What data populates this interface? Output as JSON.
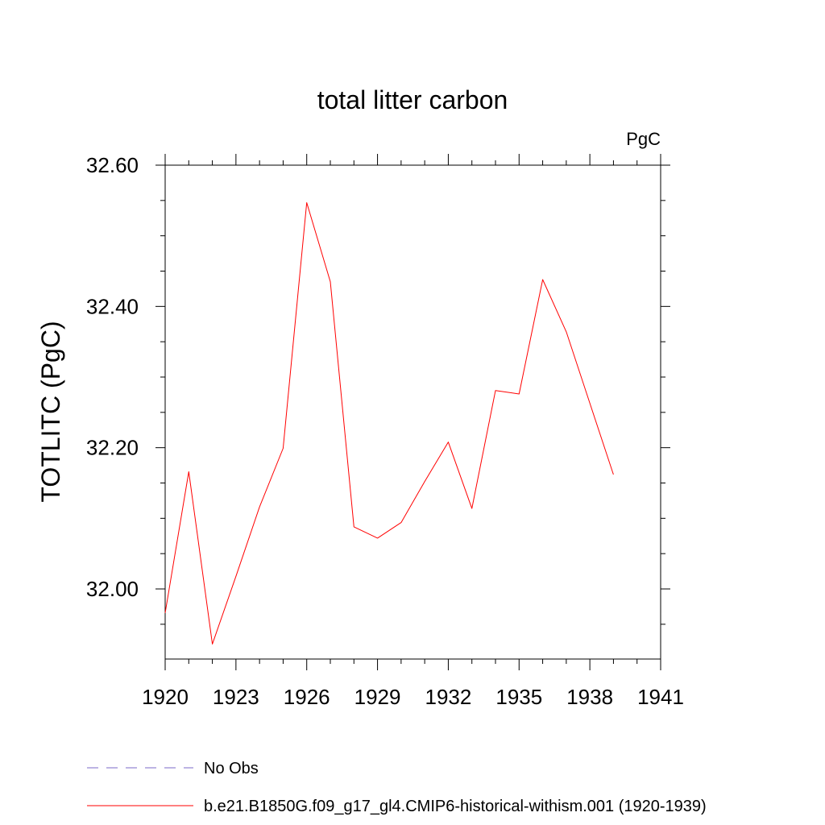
{
  "chart_data": {
    "type": "line",
    "title": "total litter carbon",
    "units_label": "PgC",
    "ylabel": "TOTLITC  (PgC)",
    "xlabel": "",
    "xlim": [
      1920,
      1941
    ],
    "ylim": [
      31.9,
      32.62
    ],
    "x_ticks": [
      1920,
      1923,
      1926,
      1929,
      1932,
      1935,
      1938,
      1941
    ],
    "y_ticks": [
      32.0,
      32.2,
      32.4,
      32.6
    ],
    "y_tick_labels": [
      "32.00",
      "32.20",
      "32.40",
      "32.60"
    ],
    "grid": false,
    "legend_position": "bottom-left",
    "series": [
      {
        "name": "No Obs",
        "style": "dashed",
        "color": "#7b68c8",
        "x": [],
        "y": []
      },
      {
        "name": "b.e21.B1850G.f09_g17_gl4.CMIP6-historical-withism.001 (1920-1939)",
        "style": "solid",
        "color": "#ff0000",
        "x": [
          1920,
          1921,
          1922,
          1923,
          1924,
          1925,
          1926,
          1927,
          1928,
          1929,
          1930,
          1931,
          1932,
          1933,
          1934,
          1935,
          1936,
          1937,
          1938,
          1939
        ],
        "y": [
          31.966,
          32.166,
          31.922,
          32.018,
          32.116,
          32.199,
          32.547,
          32.435,
          32.088,
          32.072,
          32.094,
          32.152,
          32.208,
          32.114,
          32.281,
          32.276,
          32.438,
          32.364,
          32.263,
          32.162
        ]
      }
    ]
  }
}
